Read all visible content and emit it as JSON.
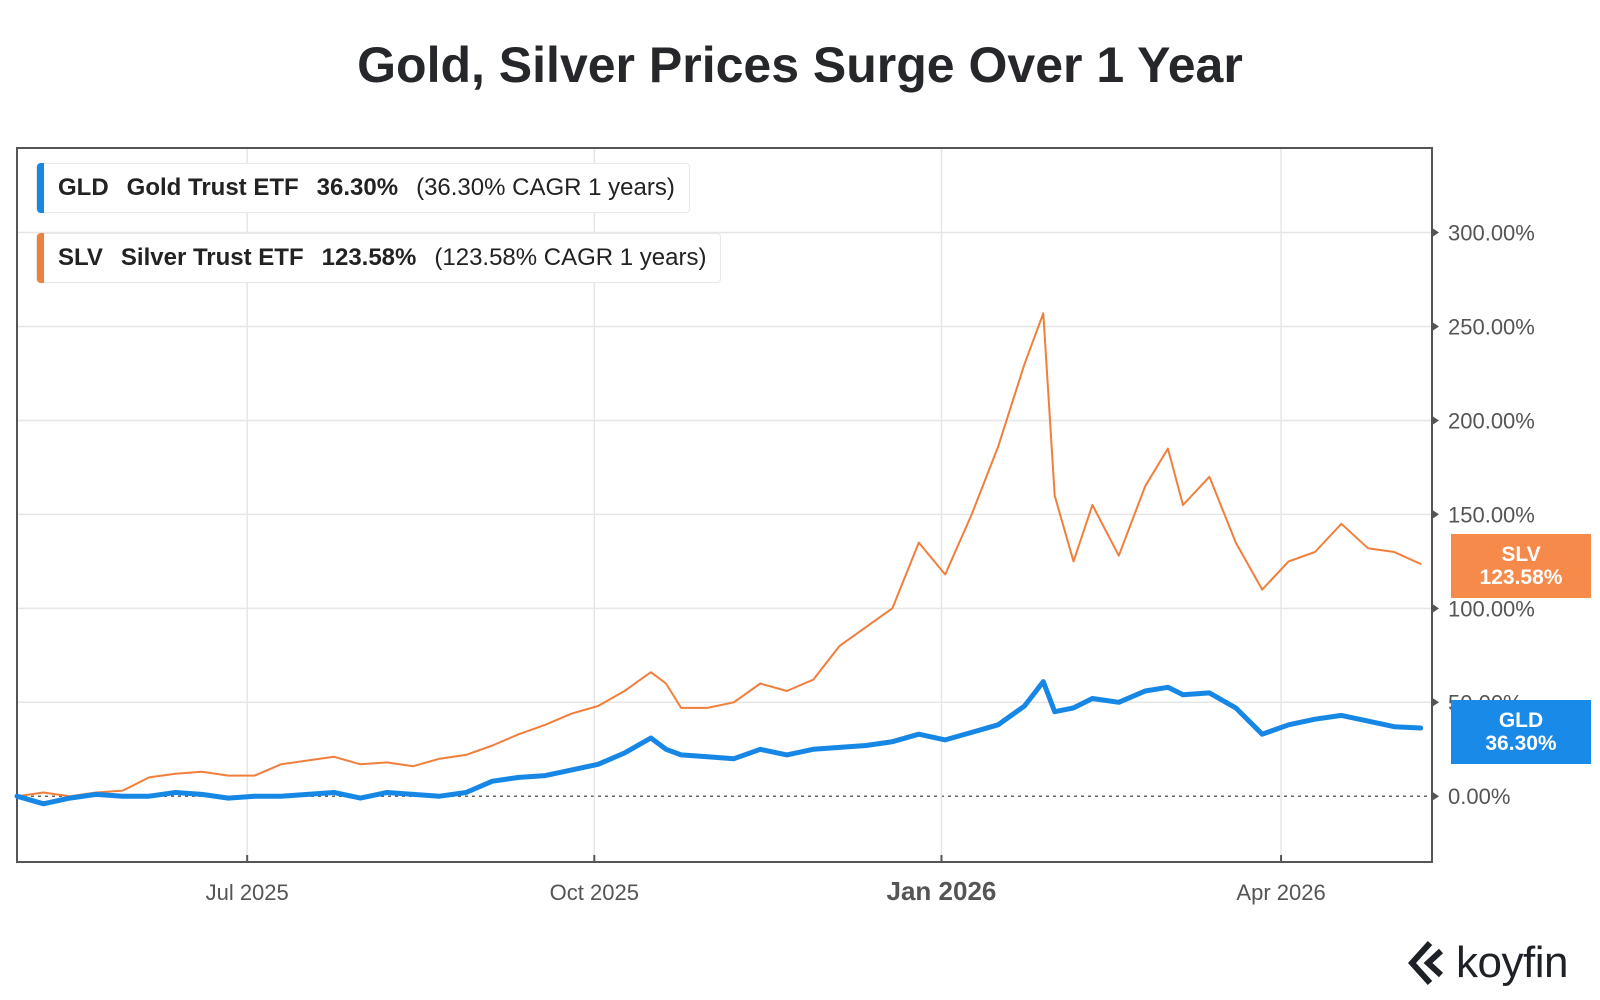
{
  "chart_data": {
    "type": "line",
    "title": "Gold, Silver Prices Surge Over 1 Year",
    "xlabel": "",
    "ylabel": "",
    "x_range": [
      "2025-05-01",
      "2026-05-11"
    ],
    "x_ticks": [
      {
        "date": "2025-07-01",
        "label": "Jul 2025",
        "bold": false
      },
      {
        "date": "2025-10-01",
        "label": "Oct 2025",
        "bold": false
      },
      {
        "date": "2026-01-01",
        "label": "Jan 2026",
        "bold": true
      },
      {
        "date": "2026-04-01",
        "label": "Apr 2026",
        "bold": false
      }
    ],
    "ylim": [
      -35,
      345
    ],
    "y_ticks": [
      0,
      50,
      100,
      150,
      200,
      250,
      300
    ],
    "y_tick_labels": [
      "0.00%",
      "50.00%",
      "100.00%",
      "150.00%",
      "200.00%",
      "250.00%",
      "300.00%"
    ],
    "grid": true,
    "zero_line": "dotted",
    "legend_position": "top-left",
    "series": [
      {
        "name": "SLV",
        "label": "Silver Trust ETF",
        "color": "#f07f3c",
        "return_label": "123.58%",
        "cagr_label": "(123.58% CAGR 1 years)",
        "end_value": 123.58,
        "points": [
          [
            "2025-05-01",
            0
          ],
          [
            "2025-05-08",
            2
          ],
          [
            "2025-05-15",
            0
          ],
          [
            "2025-05-22",
            2
          ],
          [
            "2025-05-29",
            3
          ],
          [
            "2025-06-05",
            10
          ],
          [
            "2025-06-12",
            12
          ],
          [
            "2025-06-19",
            13
          ],
          [
            "2025-06-26",
            11
          ],
          [
            "2025-07-03",
            11
          ],
          [
            "2025-07-10",
            17
          ],
          [
            "2025-07-17",
            19
          ],
          [
            "2025-07-24",
            21
          ],
          [
            "2025-07-31",
            17
          ],
          [
            "2025-08-07",
            18
          ],
          [
            "2025-08-14",
            16
          ],
          [
            "2025-08-21",
            20
          ],
          [
            "2025-08-28",
            22
          ],
          [
            "2025-09-04",
            27
          ],
          [
            "2025-09-11",
            33
          ],
          [
            "2025-09-18",
            38
          ],
          [
            "2025-09-25",
            44
          ],
          [
            "2025-10-02",
            48
          ],
          [
            "2025-10-09",
            56
          ],
          [
            "2025-10-16",
            66
          ],
          [
            "2025-10-20",
            60
          ],
          [
            "2025-10-24",
            47
          ],
          [
            "2025-10-31",
            47
          ],
          [
            "2025-11-07",
            50
          ],
          [
            "2025-11-14",
            60
          ],
          [
            "2025-11-21",
            56
          ],
          [
            "2025-11-28",
            62
          ],
          [
            "2025-12-05",
            80
          ],
          [
            "2025-12-12",
            90
          ],
          [
            "2025-12-19",
            100
          ],
          [
            "2025-12-26",
            135
          ],
          [
            "2026-01-02",
            118
          ],
          [
            "2026-01-09",
            150
          ],
          [
            "2026-01-16",
            186
          ],
          [
            "2026-01-23",
            230
          ],
          [
            "2026-01-28",
            257
          ],
          [
            "2026-01-31",
            160
          ],
          [
            "2026-02-05",
            125
          ],
          [
            "2026-02-10",
            155
          ],
          [
            "2026-02-17",
            128
          ],
          [
            "2026-02-24",
            165
          ],
          [
            "2026-03-02",
            185
          ],
          [
            "2026-03-06",
            155
          ],
          [
            "2026-03-13",
            170
          ],
          [
            "2026-03-20",
            135
          ],
          [
            "2026-03-27",
            110
          ],
          [
            "2026-04-03",
            125
          ],
          [
            "2026-04-10",
            130
          ],
          [
            "2026-04-17",
            145
          ],
          [
            "2026-04-24",
            132
          ],
          [
            "2026-05-01",
            130
          ],
          [
            "2026-05-08",
            123.58
          ]
        ]
      },
      {
        "name": "GLD",
        "label": "Gold Trust ETF",
        "color": "#1787e6",
        "return_label": "36.30%",
        "cagr_label": "(36.30% CAGR 1 years)",
        "end_value": 36.3,
        "points": [
          [
            "2025-05-01",
            0
          ],
          [
            "2025-05-08",
            -4
          ],
          [
            "2025-05-15",
            -1
          ],
          [
            "2025-05-22",
            1
          ],
          [
            "2025-05-29",
            0
          ],
          [
            "2025-06-05",
            0
          ],
          [
            "2025-06-12",
            2
          ],
          [
            "2025-06-19",
            1
          ],
          [
            "2025-06-26",
            -1
          ],
          [
            "2025-07-03",
            0
          ],
          [
            "2025-07-10",
            0
          ],
          [
            "2025-07-17",
            1
          ],
          [
            "2025-07-24",
            2
          ],
          [
            "2025-07-31",
            -1
          ],
          [
            "2025-08-07",
            2
          ],
          [
            "2025-08-14",
            1
          ],
          [
            "2025-08-21",
            0
          ],
          [
            "2025-08-28",
            2
          ],
          [
            "2025-09-04",
            8
          ],
          [
            "2025-09-11",
            10
          ],
          [
            "2025-09-18",
            11
          ],
          [
            "2025-09-25",
            14
          ],
          [
            "2025-10-02",
            17
          ],
          [
            "2025-10-09",
            23
          ],
          [
            "2025-10-16",
            31
          ],
          [
            "2025-10-20",
            25
          ],
          [
            "2025-10-24",
            22
          ],
          [
            "2025-10-31",
            21
          ],
          [
            "2025-11-07",
            20
          ],
          [
            "2025-11-14",
            25
          ],
          [
            "2025-11-21",
            22
          ],
          [
            "2025-11-28",
            25
          ],
          [
            "2025-12-05",
            26
          ],
          [
            "2025-12-12",
            27
          ],
          [
            "2025-12-19",
            29
          ],
          [
            "2025-12-26",
            33
          ],
          [
            "2026-01-02",
            30
          ],
          [
            "2026-01-09",
            34
          ],
          [
            "2026-01-16",
            38
          ],
          [
            "2026-01-23",
            48
          ],
          [
            "2026-01-28",
            61
          ],
          [
            "2026-01-31",
            45
          ],
          [
            "2026-02-05",
            47
          ],
          [
            "2026-02-10",
            52
          ],
          [
            "2026-02-17",
            50
          ],
          [
            "2026-02-24",
            56
          ],
          [
            "2026-03-02",
            58
          ],
          [
            "2026-03-06",
            54
          ],
          [
            "2026-03-13",
            55
          ],
          [
            "2026-03-20",
            47
          ],
          [
            "2026-03-27",
            33
          ],
          [
            "2026-04-03",
            38
          ],
          [
            "2026-04-10",
            41
          ],
          [
            "2026-04-17",
            43
          ],
          [
            "2026-04-24",
            40
          ],
          [
            "2026-05-01",
            37
          ],
          [
            "2026-05-08",
            36.3
          ]
        ]
      }
    ]
  },
  "legend": [
    {
      "ticker": "GLD",
      "name": "Gold Trust ETF",
      "ret": "36.30%",
      "cagr": "(36.30% CAGR 1 years)",
      "color": "#1787e6"
    },
    {
      "ticker": "SLV",
      "name": "Silver Trust ETF",
      "ret": "123.58%",
      "cagr": "(123.58% CAGR 1 years)",
      "color": "#f07f3c"
    }
  ],
  "price_tags": {
    "slv": {
      "ticker": "SLV",
      "value": "123.58%",
      "color": "#f58a4b"
    },
    "gld": {
      "ticker": "GLD",
      "value": "36.30%",
      "color": "#1a8ae8"
    }
  },
  "branding": {
    "logo_text": "koyfin",
    "logo_icon": "koyfin-chevron-icon"
  }
}
